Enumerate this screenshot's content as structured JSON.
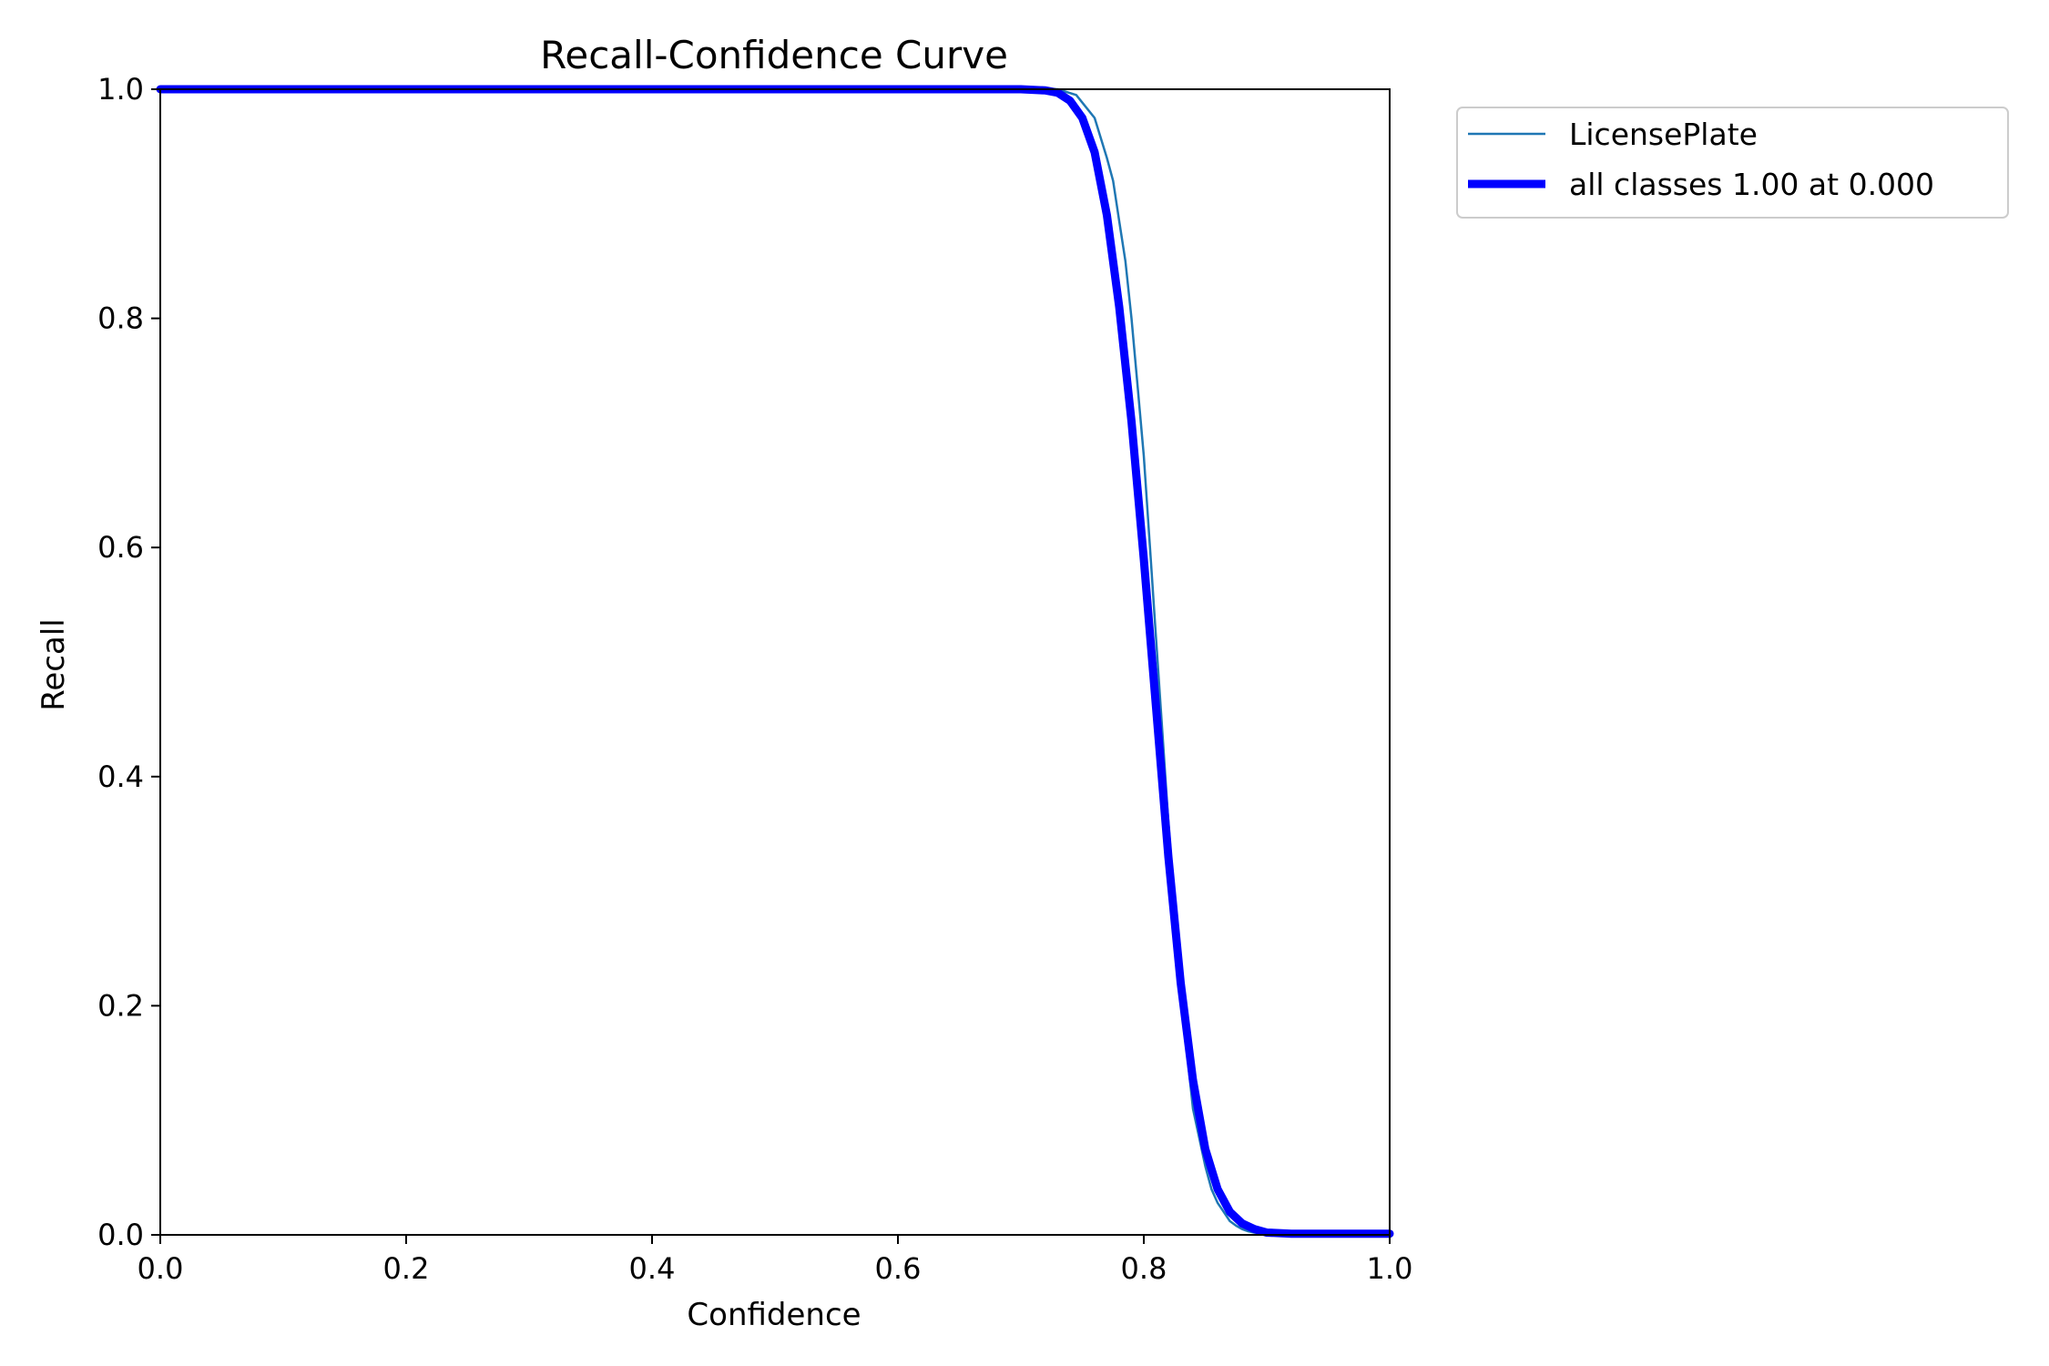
{
  "chart_data": {
    "type": "line",
    "title": "Recall-Confidence Curve",
    "xlabel": "Confidence",
    "ylabel": "Recall",
    "xlim": [
      0.0,
      1.0
    ],
    "ylim": [
      0.0,
      1.0
    ],
    "xticks": [
      "0.0",
      "0.2",
      "0.4",
      "0.6",
      "0.8",
      "1.0"
    ],
    "yticks": [
      "0.0",
      "0.2",
      "0.4",
      "0.6",
      "0.8",
      "1.0"
    ],
    "grid": false,
    "legend_position": "outside-top-right",
    "series": [
      {
        "name": "LicensePlate",
        "color": "#1f77b4",
        "style": "thin",
        "x": [
          0.0,
          0.7,
          0.73,
          0.745,
          0.76,
          0.77,
          0.775,
          0.78,
          0.785,
          0.79,
          0.795,
          0.8,
          0.805,
          0.81,
          0.815,
          0.82,
          0.825,
          0.83,
          0.835,
          0.84,
          0.845,
          0.85,
          0.855,
          0.86,
          0.865,
          0.87,
          0.875,
          0.88,
          0.885,
          0.89,
          0.9,
          0.92,
          1.0
        ],
        "y": [
          1.0,
          1.0,
          1.0,
          0.995,
          0.975,
          0.94,
          0.92,
          0.885,
          0.85,
          0.8,
          0.74,
          0.68,
          0.6,
          0.52,
          0.44,
          0.36,
          0.29,
          0.23,
          0.16,
          0.11,
          0.085,
          0.06,
          0.04,
          0.028,
          0.02,
          0.012,
          0.008,
          0.005,
          0.003,
          0.002,
          0.001,
          0.001,
          0.001
        ]
      },
      {
        "name": "all classes 1.00 at 0.000",
        "color": "#0000ff",
        "style": "thick",
        "x": [
          0.0,
          0.7,
          0.72,
          0.73,
          0.74,
          0.75,
          0.76,
          0.77,
          0.78,
          0.79,
          0.8,
          0.81,
          0.82,
          0.83,
          0.84,
          0.85,
          0.86,
          0.87,
          0.88,
          0.89,
          0.9,
          0.92,
          1.0
        ],
        "y": [
          1.0,
          1.0,
          0.999,
          0.997,
          0.99,
          0.975,
          0.945,
          0.89,
          0.81,
          0.71,
          0.59,
          0.46,
          0.33,
          0.22,
          0.135,
          0.075,
          0.04,
          0.02,
          0.01,
          0.005,
          0.002,
          0.001,
          0.001
        ]
      }
    ]
  }
}
